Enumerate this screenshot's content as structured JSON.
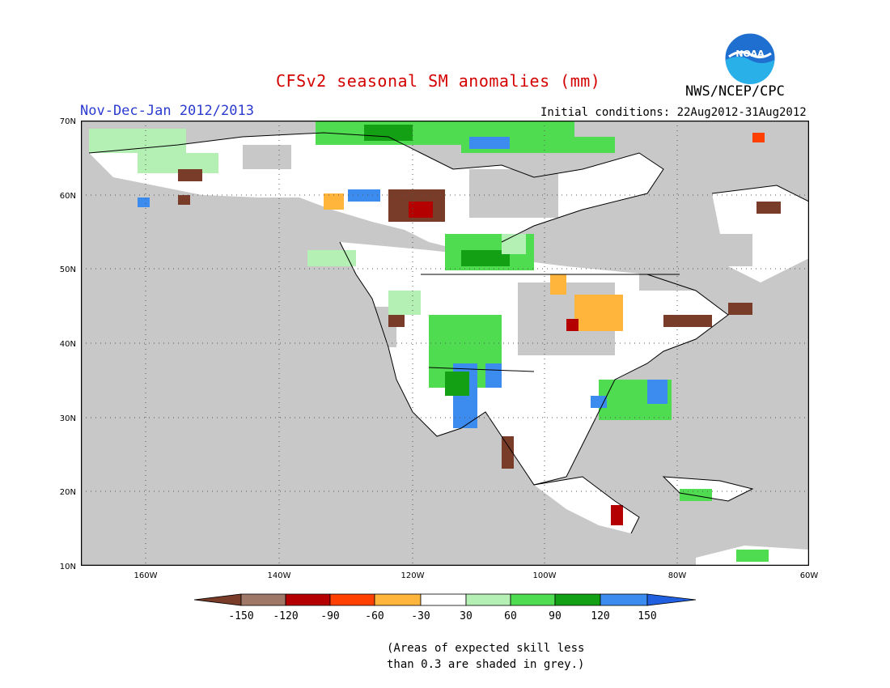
{
  "title": "CFSv2 seasonal SM anomalies (mm)",
  "period": "Nov-Dec-Jan 2012/2013",
  "initial_conditions": "Initial conditions: 22Aug2012-31Aug2012",
  "agency": "NWS/NCEP/CPC",
  "logo_text": "NOAA",
  "note_line1": "(Areas of expected skill less",
  "note_line2": "than 0.3 are shaded in grey.)",
  "map": {
    "projection": "lat-lon",
    "lon_range": [
      -172,
      -60
    ],
    "lat_range": [
      10,
      70
    ],
    "lat_labels": [
      "70N",
      "60N",
      "50N",
      "40N",
      "30N",
      "20N",
      "10N"
    ],
    "lon_labels": [
      "160W",
      "140W",
      "120W",
      "100W",
      "80W",
      "60W"
    ],
    "colors": {
      "ocean": "#c8c8c8",
      "land_no_skill": "#c8c8c8",
      "land_skill": "#ffffff",
      "grid": "#555555"
    }
  },
  "legend": {
    "labels": [
      "-150",
      "-120",
      "-90",
      "-60",
      "-30",
      "30",
      "60",
      "90",
      "120",
      "150"
    ],
    "colors": [
      "#783c28",
      "#a07868",
      "#b40000",
      "#ff4000",
      "#ffb43c",
      "#ffffff",
      "#b4f0b4",
      "#50dc50",
      "#14a014",
      "#3c8cf0",
      "#2060e0"
    ]
  }
}
